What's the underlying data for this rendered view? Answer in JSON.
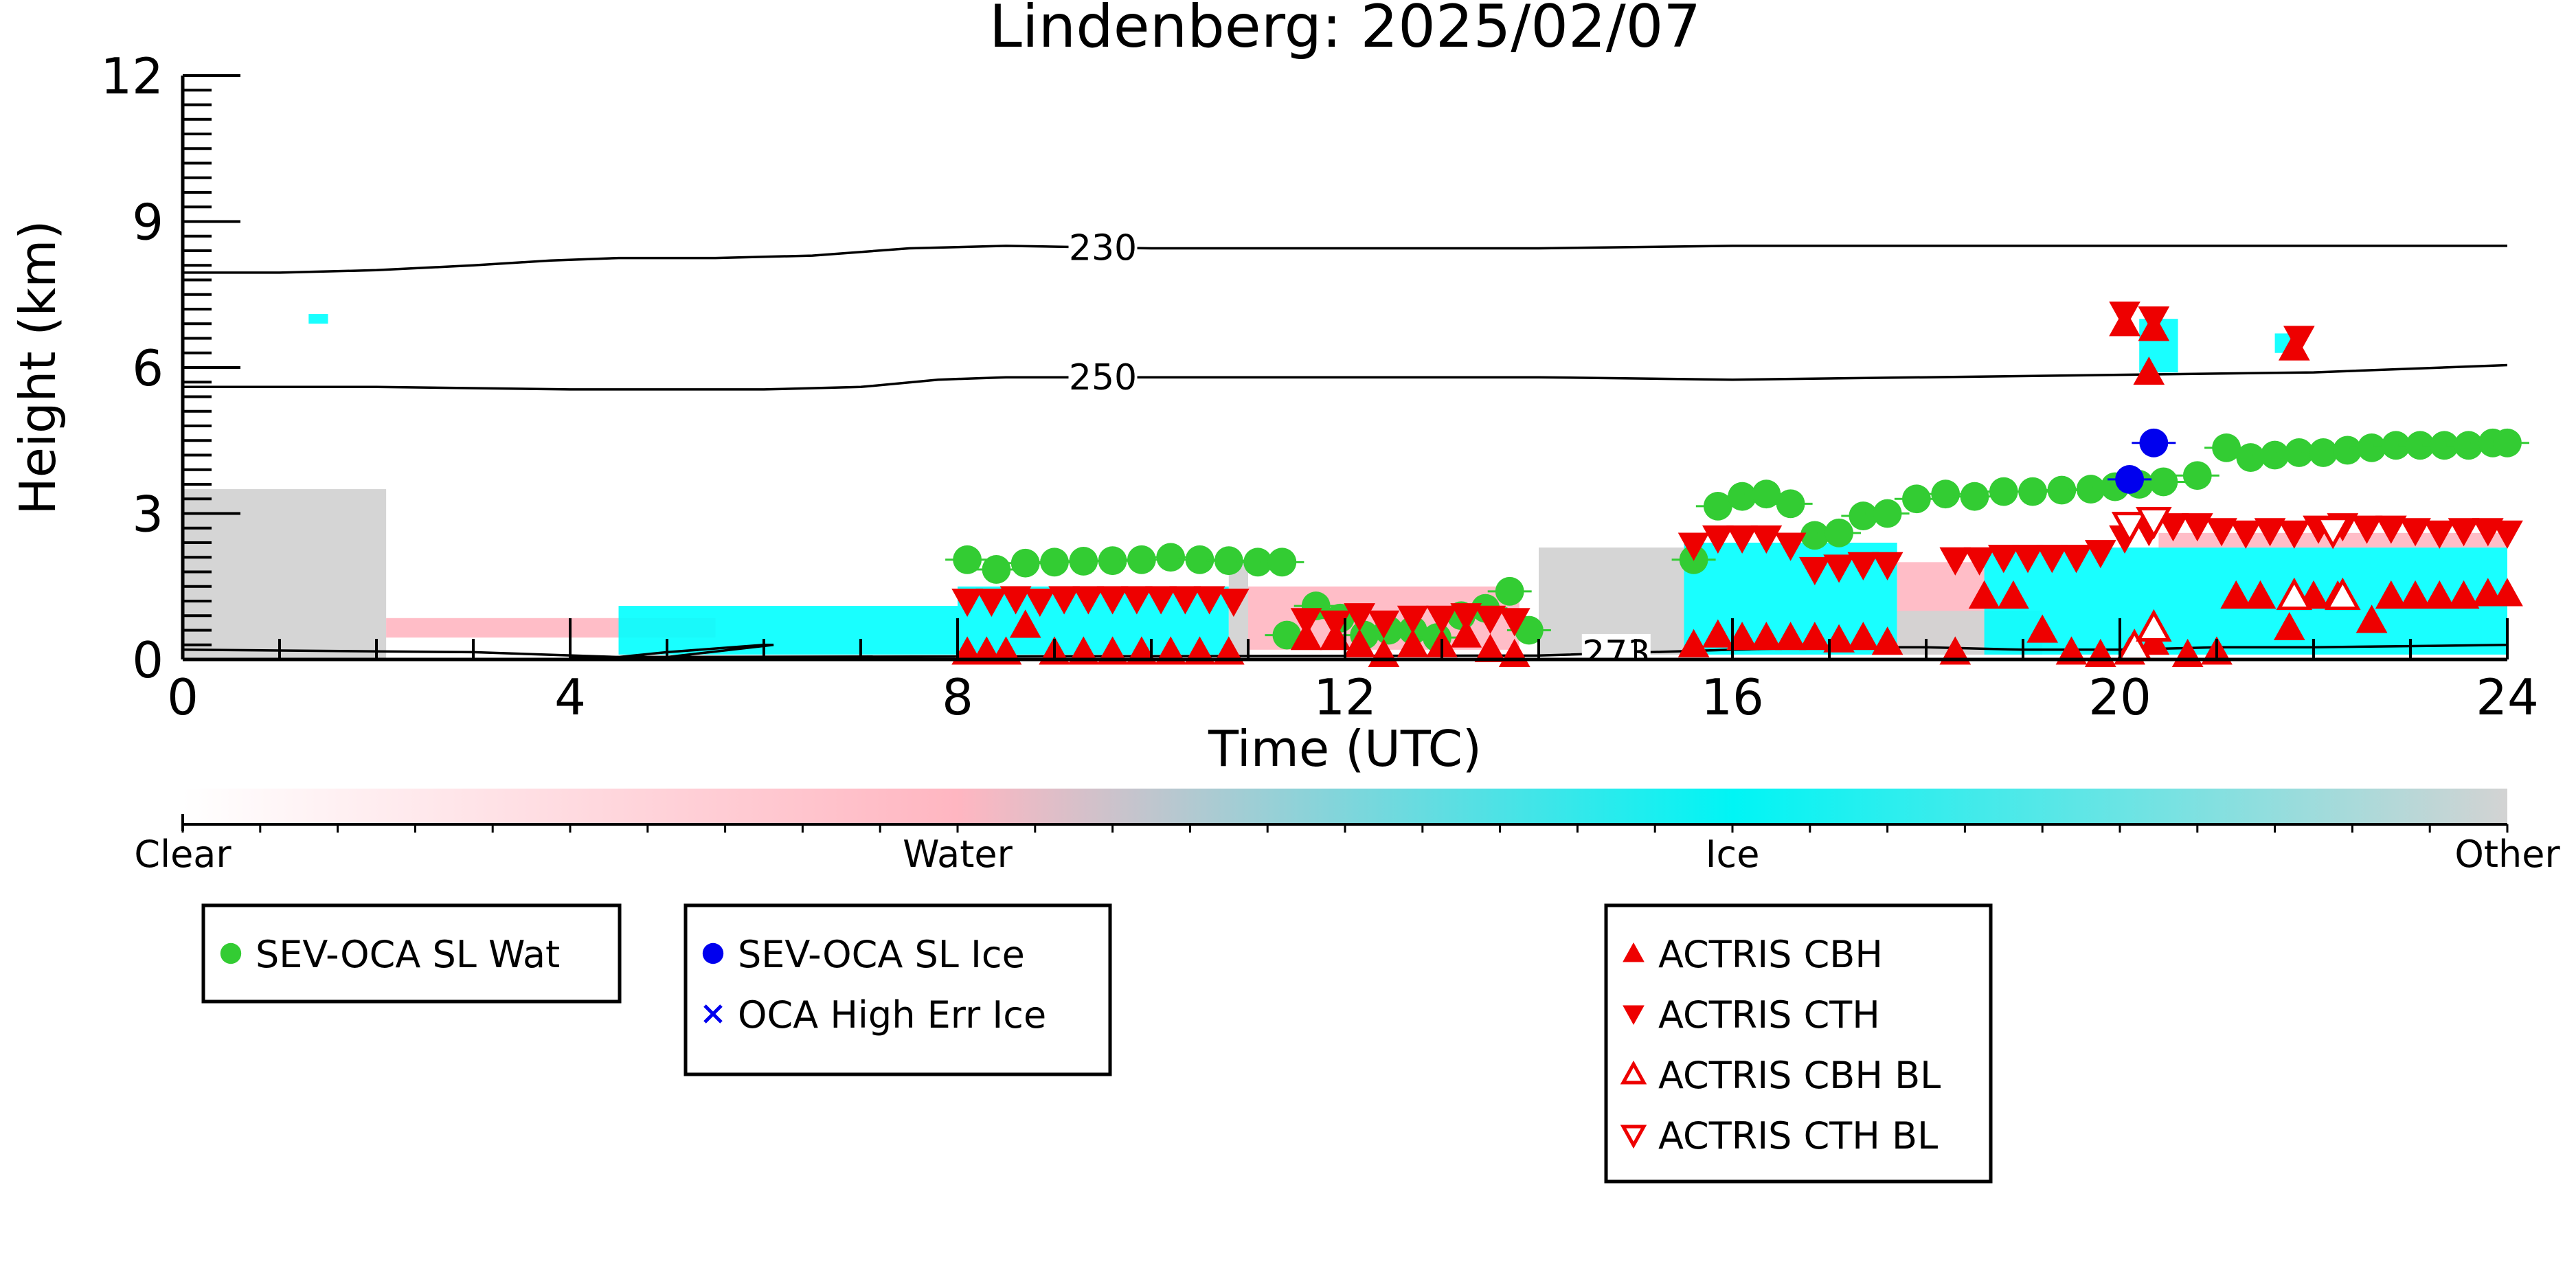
{
  "chart_data": {
    "type": "scatter",
    "title": "Lindenberg: 2025/02/07",
    "xlabel": "Time (UTC)",
    "ylabel": "Height (km)",
    "xlim": [
      0,
      24
    ],
    "ylim": [
      0,
      12
    ],
    "x_ticks": [
      0,
      4,
      8,
      12,
      16,
      20,
      24
    ],
    "y_ticks": [
      0,
      3,
      6,
      9,
      12
    ],
    "grid": false,
    "contours": [
      {
        "label": "230",
        "label_x": 9.5,
        "points": [
          [
            0,
            7.95
          ],
          [
            1,
            7.95
          ],
          [
            2,
            8.0
          ],
          [
            3,
            8.1
          ],
          [
            3.8,
            8.2
          ],
          [
            4.5,
            8.25
          ],
          [
            5.5,
            8.25
          ],
          [
            6.5,
            8.3
          ],
          [
            7.5,
            8.45
          ],
          [
            8.5,
            8.5
          ],
          [
            10,
            8.45
          ],
          [
            12,
            8.45
          ],
          [
            14,
            8.45
          ],
          [
            16,
            8.5
          ],
          [
            18,
            8.5
          ],
          [
            20,
            8.5
          ],
          [
            22,
            8.5
          ],
          [
            24,
            8.5
          ]
        ]
      },
      {
        "label": "250",
        "label_x": 9.5,
        "points": [
          [
            0,
            5.6
          ],
          [
            2,
            5.6
          ],
          [
            4,
            5.55
          ],
          [
            6,
            5.55
          ],
          [
            7,
            5.6
          ],
          [
            7.8,
            5.75
          ],
          [
            8.5,
            5.8
          ],
          [
            10,
            5.8
          ],
          [
            12,
            5.8
          ],
          [
            14,
            5.8
          ],
          [
            16,
            5.75
          ],
          [
            18,
            5.8
          ],
          [
            20,
            5.85
          ],
          [
            22,
            5.9
          ],
          [
            24,
            6.05
          ]
        ]
      },
      {
        "label": "273",
        "label_x": 14.8,
        "points": [
          [
            0,
            0.2
          ],
          [
            3,
            0.15
          ],
          [
            4.5,
            0.05
          ],
          [
            5,
            0.15
          ],
          [
            6,
            0.3
          ],
          [
            6.1,
            0.3
          ],
          [
            5,
            0.05
          ],
          [
            4,
            0.05
          ],
          [
            14,
            0.08
          ],
          [
            16,
            0.2
          ],
          [
            17,
            0.25
          ],
          [
            18,
            0.25
          ],
          [
            19,
            0.2
          ],
          [
            20,
            0.2
          ],
          [
            21,
            0.25
          ],
          [
            22,
            0.25
          ],
          [
            24,
            0.3
          ]
        ]
      }
    ],
    "cloudnet_regions": [
      {
        "class": "Other",
        "x0": 0.0,
        "x1": 2.1,
        "y0": 0.0,
        "y1": 3.5
      },
      {
        "class": "Water",
        "x0": 2.1,
        "x1": 5.5,
        "y0": 0.45,
        "y1": 0.85
      },
      {
        "class": "Ice",
        "x0": 4.5,
        "x1": 8.0,
        "y0": 0.1,
        "y1": 1.1
      },
      {
        "class": "Ice",
        "x0": 8.0,
        "x1": 10.8,
        "y0": 0.1,
        "y1": 1.5
      },
      {
        "class": "Other",
        "x0": 10.8,
        "x1": 11.0,
        "y0": 0.1,
        "y1": 2.0
      },
      {
        "class": "Water",
        "x0": 11.0,
        "x1": 13.8,
        "y0": 0.2,
        "y1": 1.5
      },
      {
        "class": "Other",
        "x0": 14.0,
        "x1": 15.5,
        "y0": 0.1,
        "y1": 2.3
      },
      {
        "class": "Ice",
        "x0": 15.5,
        "x1": 17.7,
        "y0": 0.1,
        "y1": 2.4
      },
      {
        "class": "Water",
        "x0": 17.7,
        "x1": 18.6,
        "y0": 0.1,
        "y1": 2.0
      },
      {
        "class": "Other",
        "x0": 17.7,
        "x1": 19.2,
        "y0": 0.1,
        "y1": 1.0
      },
      {
        "class": "Ice",
        "x0": 18.6,
        "x1": 24.0,
        "y0": 0.1,
        "y1": 2.3
      },
      {
        "class": "Water",
        "x0": 20.4,
        "x1": 24.0,
        "y0": 2.3,
        "y1": 2.6
      },
      {
        "class": "Ice",
        "x0": 20.2,
        "x1": 20.6,
        "y0": 5.9,
        "y1": 7.0
      },
      {
        "class": "Ice",
        "x0": 21.6,
        "x1": 21.8,
        "y0": 6.3,
        "y1": 6.7
      },
      {
        "class": "Ice",
        "x0": 1.3,
        "x1": 1.5,
        "y0": 6.9,
        "y1": 7.1
      }
    ],
    "colorbar": {
      "labels": [
        "Clear",
        "Water",
        "Ice",
        "Other"
      ],
      "colors": [
        "#ffffff",
        "#ffb6c1",
        "#00ffff",
        "#d3d3d3"
      ]
    },
    "series": [
      {
        "name": "SEV-OCA SL Wat",
        "color": "#33cc33",
        "marker": "circle",
        "points": [
          [
            8.1,
            2.05
          ],
          [
            8.4,
            1.85
          ],
          [
            8.7,
            1.98
          ],
          [
            9.0,
            2.0
          ],
          [
            9.3,
            2.02
          ],
          [
            9.6,
            2.03
          ],
          [
            9.9,
            2.05
          ],
          [
            10.2,
            2.1
          ],
          [
            10.5,
            2.05
          ],
          [
            10.8,
            2.03
          ],
          [
            11.1,
            2.0
          ],
          [
            11.35,
            2.0
          ],
          [
            11.4,
            0.5
          ],
          [
            11.7,
            1.1
          ],
          [
            11.95,
            0.85
          ],
          [
            12.2,
            0.5
          ],
          [
            12.45,
            0.6
          ],
          [
            12.7,
            0.6
          ],
          [
            12.95,
            0.45
          ],
          [
            13.2,
            0.9
          ],
          [
            13.45,
            1.05
          ],
          [
            13.7,
            1.4
          ],
          [
            13.9,
            0.6
          ],
          [
            15.6,
            2.05
          ],
          [
            15.85,
            3.15
          ],
          [
            16.1,
            3.35
          ],
          [
            16.35,
            3.4
          ],
          [
            16.6,
            3.2
          ],
          [
            16.85,
            2.55
          ],
          [
            17.1,
            2.6
          ],
          [
            17.35,
            2.95
          ],
          [
            17.6,
            3.0
          ],
          [
            17.9,
            3.3
          ],
          [
            18.2,
            3.4
          ],
          [
            18.5,
            3.35
          ],
          [
            18.8,
            3.45
          ],
          [
            19.1,
            3.45
          ],
          [
            19.4,
            3.48
          ],
          [
            19.7,
            3.5
          ],
          [
            19.95,
            3.55
          ],
          [
            20.2,
            3.6
          ],
          [
            20.45,
            3.65
          ],
          [
            20.8,
            3.78
          ],
          [
            21.1,
            4.35
          ],
          [
            21.35,
            4.15
          ],
          [
            21.6,
            4.2
          ],
          [
            21.85,
            4.25
          ],
          [
            22.1,
            4.25
          ],
          [
            22.35,
            4.3
          ],
          [
            22.6,
            4.35
          ],
          [
            22.85,
            4.4
          ],
          [
            23.1,
            4.4
          ],
          [
            23.35,
            4.4
          ],
          [
            23.6,
            4.4
          ],
          [
            23.85,
            4.45
          ],
          [
            24.0,
            4.45
          ]
        ]
      },
      {
        "name": "SEV-OCA SL Ice",
        "color": "#0000ee",
        "marker": "circle",
        "points": [
          [
            20.1,
            3.7
          ],
          [
            20.35,
            4.45
          ]
        ]
      },
      {
        "name": "OCA High Err Ice",
        "color": "#0000ee",
        "marker": "x",
        "points": []
      },
      {
        "name": "ACTRIS CBH",
        "color": "#ee0000",
        "marker": "triangle-up",
        "points": [
          [
            8.1,
            0.15
          ],
          [
            8.3,
            0.15
          ],
          [
            8.5,
            0.15
          ],
          [
            8.7,
            0.7
          ],
          [
            9.0,
            0.15
          ],
          [
            9.3,
            0.15
          ],
          [
            9.6,
            0.15
          ],
          [
            9.9,
            0.15
          ],
          [
            10.2,
            0.15
          ],
          [
            10.5,
            0.15
          ],
          [
            10.8,
            0.15
          ],
          [
            11.6,
            0.45
          ],
          [
            11.9,
            0.45
          ],
          [
            12.15,
            0.3
          ],
          [
            12.4,
            0.1
          ],
          [
            12.7,
            0.3
          ],
          [
            13.0,
            0.3
          ],
          [
            13.25,
            0.5
          ],
          [
            13.5,
            0.2
          ],
          [
            13.75,
            0.1
          ],
          [
            15.6,
            0.3
          ],
          [
            15.85,
            0.5
          ],
          [
            16.1,
            0.45
          ],
          [
            16.35,
            0.45
          ],
          [
            16.6,
            0.45
          ],
          [
            16.85,
            0.45
          ],
          [
            17.1,
            0.4
          ],
          [
            17.35,
            0.45
          ],
          [
            17.6,
            0.35
          ],
          [
            18.3,
            0.15
          ],
          [
            18.6,
            1.3
          ],
          [
            18.9,
            1.3
          ],
          [
            19.2,
            0.6
          ],
          [
            19.5,
            0.15
          ],
          [
            19.8,
            0.1
          ],
          [
            20.1,
            0.15
          ],
          [
            20.3,
            5.9
          ],
          [
            20.35,
            0.35
          ],
          [
            20.7,
            0.1
          ],
          [
            21.0,
            0.15
          ],
          [
            21.2,
            1.3
          ],
          [
            21.45,
            1.3
          ],
          [
            21.75,
            0.65
          ],
          [
            22.0,
            1.3
          ],
          [
            22.25,
            1.3
          ],
          [
            22.6,
            0.8
          ],
          [
            22.8,
            1.3
          ],
          [
            23.05,
            1.3
          ],
          [
            23.3,
            1.3
          ],
          [
            23.55,
            1.3
          ],
          [
            23.8,
            1.35
          ],
          [
            24.0,
            1.35
          ],
          [
            20.05,
            6.9
          ],
          [
            20.35,
            6.8
          ],
          [
            21.8,
            6.4
          ]
        ]
      },
      {
        "name": "ACTRIS CTH",
        "color": "#ee0000",
        "marker": "triangle-down",
        "points": [
          [
            8.1,
            1.2
          ],
          [
            8.35,
            1.2
          ],
          [
            8.6,
            1.25
          ],
          [
            8.85,
            1.2
          ],
          [
            9.1,
            1.25
          ],
          [
            9.35,
            1.25
          ],
          [
            9.6,
            1.25
          ],
          [
            9.85,
            1.25
          ],
          [
            10.1,
            1.25
          ],
          [
            10.35,
            1.25
          ],
          [
            10.6,
            1.25
          ],
          [
            10.85,
            1.2
          ],
          [
            11.6,
            0.8
          ],
          [
            11.9,
            0.75
          ],
          [
            12.15,
            0.9
          ],
          [
            12.4,
            0.75
          ],
          [
            12.7,
            0.85
          ],
          [
            13.0,
            0.85
          ],
          [
            13.25,
            0.9
          ],
          [
            13.5,
            0.85
          ],
          [
            13.75,
            0.8
          ],
          [
            15.6,
            2.35
          ],
          [
            15.85,
            2.5
          ],
          [
            16.1,
            2.5
          ],
          [
            16.35,
            2.5
          ],
          [
            16.6,
            2.35
          ],
          [
            16.85,
            1.85
          ],
          [
            17.1,
            1.9
          ],
          [
            17.35,
            1.95
          ],
          [
            17.6,
            1.95
          ],
          [
            18.3,
            2.05
          ],
          [
            18.55,
            2.05
          ],
          [
            18.8,
            2.1
          ],
          [
            19.05,
            2.1
          ],
          [
            19.3,
            2.1
          ],
          [
            19.55,
            2.1
          ],
          [
            19.8,
            2.2
          ],
          [
            20.05,
            2.5
          ],
          [
            20.3,
            2.65
          ],
          [
            20.55,
            2.75
          ],
          [
            20.8,
            2.75
          ],
          [
            21.05,
            2.65
          ],
          [
            21.3,
            2.6
          ],
          [
            21.55,
            2.65
          ],
          [
            21.8,
            2.6
          ],
          [
            22.05,
            2.7
          ],
          [
            22.3,
            2.75
          ],
          [
            22.55,
            2.7
          ],
          [
            22.8,
            2.7
          ],
          [
            23.05,
            2.65
          ],
          [
            23.3,
            2.6
          ],
          [
            23.55,
            2.65
          ],
          [
            23.8,
            2.65
          ],
          [
            24.0,
            2.6
          ],
          [
            20.05,
            7.1
          ],
          [
            20.35,
            7.0
          ],
          [
            21.85,
            6.6
          ]
        ]
      },
      {
        "name": "ACTRIS CBH BL",
        "color": "#ee0000",
        "marker": "triangle-up-open",
        "points": [
          [
            20.15,
            0.25
          ],
          [
            20.35,
            0.65
          ],
          [
            21.8,
            1.3
          ],
          [
            22.3,
            1.3
          ]
        ]
      },
      {
        "name": "ACTRIS CTH BL",
        "color": "#ee0000",
        "marker": "triangle-down-open",
        "points": [
          [
            20.1,
            2.75
          ],
          [
            20.35,
            2.85
          ],
          [
            22.2,
            2.65
          ]
        ]
      }
    ],
    "legends": [
      {
        "entries": [
          "SEV-OCA SL Wat"
        ]
      },
      {
        "entries": [
          "SEV-OCA SL Ice",
          "OCA High Err Ice"
        ]
      },
      {
        "entries": [
          "ACTRIS CBH",
          "ACTRIS CTH",
          "ACTRIS CBH BL",
          "ACTRIS CTH BL"
        ]
      }
    ]
  }
}
